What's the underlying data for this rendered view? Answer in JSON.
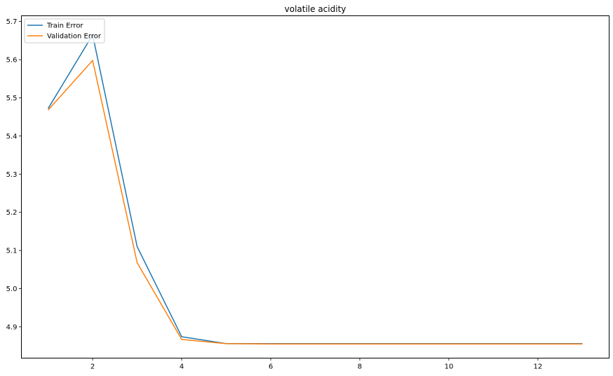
{
  "chart_data": {
    "type": "line",
    "title": "volatile acidity",
    "xlabel": "",
    "ylabel": "",
    "x": [
      1,
      2,
      3,
      4,
      5,
      6,
      7,
      8,
      9,
      10,
      11,
      12,
      13
    ],
    "xlim": [
      0.4,
      13.6
    ],
    "ylim": [
      4.818,
      5.715
    ],
    "xticks": [
      2,
      4,
      6,
      8,
      10,
      12
    ],
    "yticks": [
      4.9,
      5.0,
      5.1,
      5.2,
      5.3,
      5.4,
      5.5,
      5.6,
      5.7
    ],
    "ytick_labels": [
      "4.9",
      "5.0",
      "5.1",
      "5.2",
      "5.3",
      "5.4",
      "5.5",
      "5.6",
      "5.7"
    ],
    "grid": false,
    "legend_position": "top-left",
    "series": [
      {
        "name": "Train Error",
        "color": "#1f77b4",
        "values": [
          5.472,
          5.665,
          5.11,
          4.874,
          4.856,
          4.856,
          4.856,
          4.856,
          4.856,
          4.856,
          4.856,
          4.856,
          4.856
        ]
      },
      {
        "name": "Validation Error",
        "color": "#ff7f0e",
        "values": [
          5.468,
          5.598,
          5.068,
          4.867,
          4.856,
          4.855,
          4.855,
          4.855,
          4.855,
          4.855,
          4.855,
          4.855,
          4.855
        ]
      }
    ]
  }
}
